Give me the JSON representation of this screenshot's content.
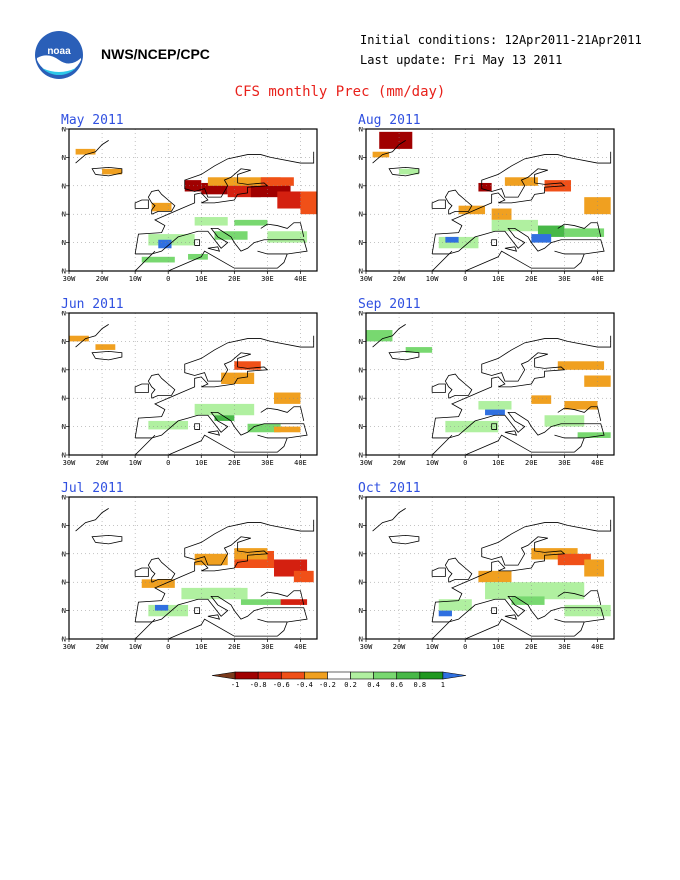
{
  "header": {
    "org": "NWS/NCEP/CPC",
    "initial_conditions": "Initial conditions: 12Apr2011-21Apr2011",
    "last_update": "Last update: Fri May 13 2011",
    "title": "CFS monthly Prec (mm/day)"
  },
  "axes": {
    "lon_ticks": [
      "30W",
      "20W",
      "10W",
      "0",
      "10E",
      "20E",
      "30E",
      "40E"
    ],
    "lat_ticks": [
      "30N",
      "40N",
      "50N",
      "60N",
      "70N",
      "80N"
    ]
  },
  "panels": [
    {
      "title": "May 2011"
    },
    {
      "title": "Aug 2011"
    },
    {
      "title": "Jun 2011"
    },
    {
      "title": "Sep 2011"
    },
    {
      "title": "Jul 2011"
    },
    {
      "title": "Oct 2011"
    }
  ],
  "colorbar": {
    "labels": [
      "-1",
      "-0.8",
      "-0.6",
      "-0.4",
      "-0.2",
      "0.2",
      "0.4",
      "0.6",
      "0.8",
      "1"
    ],
    "colors": [
      "#7a3a1c",
      "#a00000",
      "#d42010",
      "#f05018",
      "#f0a020",
      "#ffffff",
      "#b0f0a0",
      "#78d870",
      "#48b848",
      "#209820",
      "#3070e0"
    ]
  },
  "colors": {
    "title": "#e8201a",
    "panel_title": "#3050e0",
    "land_outline": "#000000"
  }
}
